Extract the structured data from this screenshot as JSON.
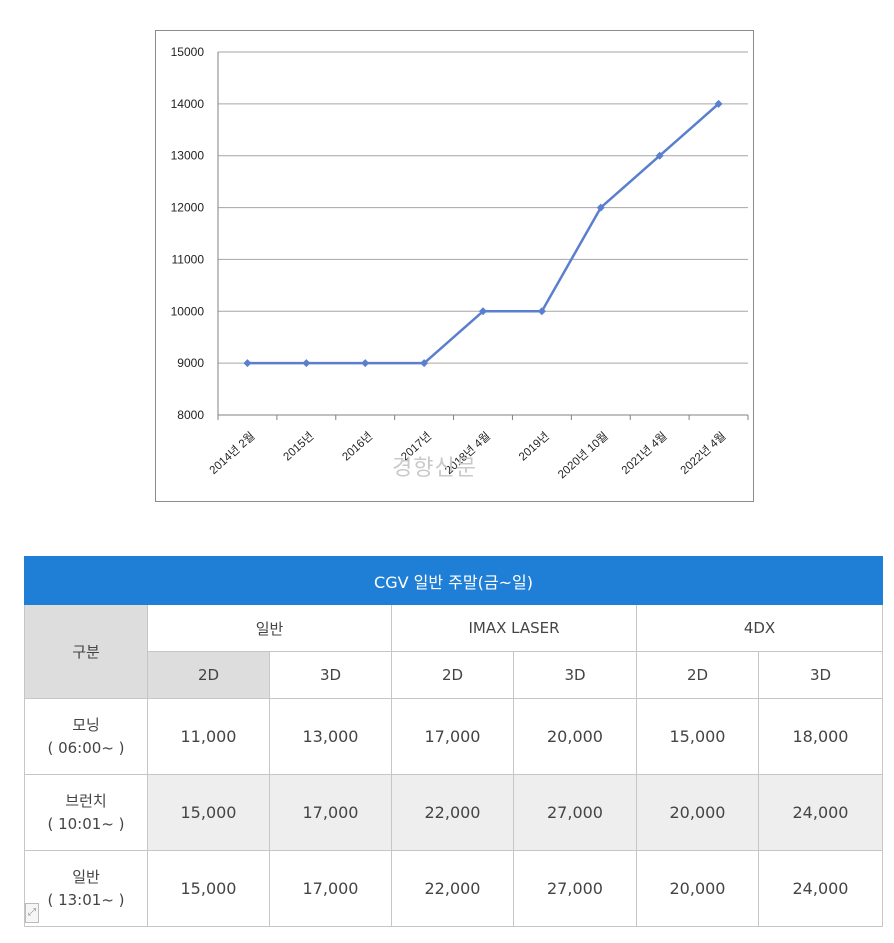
{
  "chart_data": {
    "type": "line",
    "categories": [
      "2014년 2월",
      "2015년",
      "2016년",
      "2017년",
      "2018년 4월",
      "2019년",
      "2020년 10월",
      "2021년 4월",
      "2022년 4월"
    ],
    "series": [
      {
        "values": [
          9000,
          9000,
          9000,
          9000,
          10000,
          10000,
          12000,
          13000,
          14000
        ],
        "color": "#5b7fcf"
      }
    ],
    "yticks": [
      8000,
      9000,
      10000,
      11000,
      12000,
      13000,
      14000,
      15000
    ],
    "ylim": [
      8000,
      15000
    ],
    "grid": true,
    "legend": false,
    "title": "",
    "xlabel": "",
    "ylabel": ""
  },
  "watermark": "경향신문",
  "table": {
    "title": "CGV 일반 주말(금~일)",
    "row_header": "구분",
    "groups": [
      "일반",
      "IMAX LASER",
      "4DX"
    ],
    "subheaders": [
      "2D",
      "3D",
      "2D",
      "3D",
      "2D",
      "3D"
    ],
    "rows": [
      {
        "name": "모닝",
        "time": "( 06:00~ )",
        "values": [
          "11,000",
          "13,000",
          "17,000",
          "20,000",
          "15,000",
          "18,000"
        ]
      },
      {
        "name": "브런치",
        "time": "( 10:01~ )",
        "values": [
          "15,000",
          "17,000",
          "22,000",
          "27,000",
          "20,000",
          "24,000"
        ]
      },
      {
        "name": "일반",
        "time": "( 13:01~ )",
        "values": [
          "15,000",
          "17,000",
          "22,000",
          "27,000",
          "20,000",
          "24,000"
        ]
      }
    ],
    "header_color": "#1f7ed6"
  }
}
